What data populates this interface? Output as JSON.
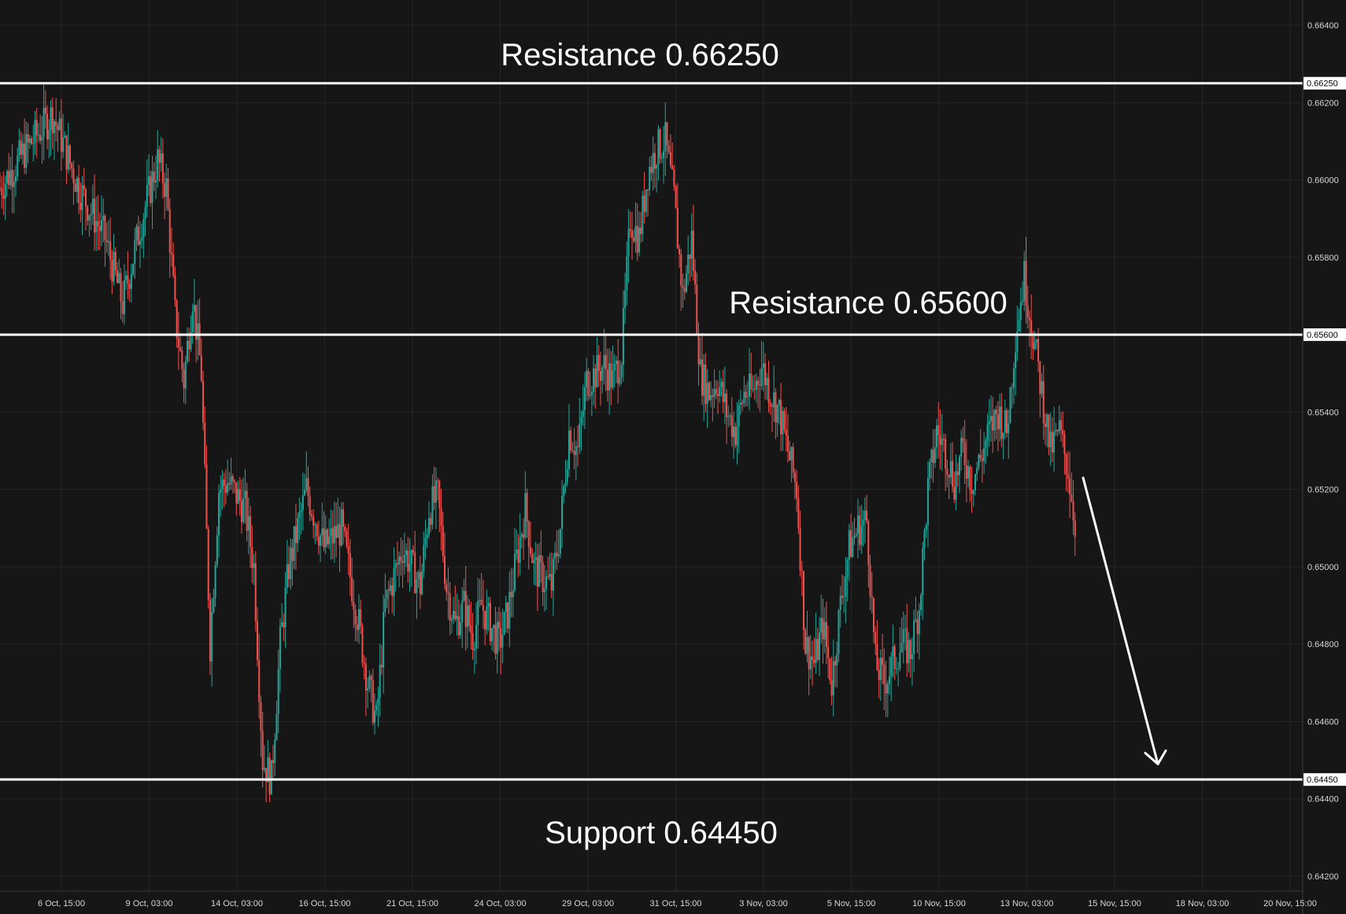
{
  "chart_data": {
    "type": "candlestick",
    "title": "",
    "xlabel": "",
    "ylabel": "",
    "ylim": [
      0.6417,
      0.6652
    ],
    "y_ticks": [
      "0.66400",
      "0.66200",
      "0.66000",
      "0.65800",
      "0.65600",
      "0.65400",
      "0.65200",
      "0.65000",
      "0.64800",
      "0.64600",
      "0.64400",
      "0.64200"
    ],
    "x_ticks": [
      "6 Oct, 15:00",
      "9 Oct, 03:00",
      "14 Oct, 03:00",
      "16 Oct, 15:00",
      "21 Oct, 15:00",
      "24 Oct, 03:00",
      "29 Oct, 03:00",
      "31 Oct, 15:00",
      "3 Nov, 03:00",
      "5 Nov, 15:00",
      "10 Nov, 15:00",
      "13 Nov, 03:00",
      "15 Nov, 15:00",
      "18 Nov, 03:00",
      "20 Nov, 15:00"
    ],
    "price_path": [
      {
        "t": 0,
        "p": 0.6598
      },
      {
        "t": 3,
        "p": 0.6608
      },
      {
        "t": 6,
        "p": 0.6617
      },
      {
        "t": 9,
        "p": 0.6598
      },
      {
        "t": 12,
        "p": 0.6585
      },
      {
        "t": 14,
        "p": 0.6568
      },
      {
        "t": 16,
        "p": 0.6588
      },
      {
        "t": 18,
        "p": 0.6605
      },
      {
        "t": 19,
        "p": 0.6598
      },
      {
        "t": 20,
        "p": 0.6565
      },
      {
        "t": 21,
        "p": 0.6548
      },
      {
        "t": 22,
        "p": 0.657
      },
      {
        "t": 23,
        "p": 0.655
      },
      {
        "t": 24,
        "p": 0.648
      },
      {
        "t": 25,
        "p": 0.652
      },
      {
        "t": 26,
        "p": 0.6522
      },
      {
        "t": 28,
        "p": 0.6515
      },
      {
        "t": 29,
        "p": 0.65
      },
      {
        "t": 30,
        "p": 0.645
      },
      {
        "t": 31,
        "p": 0.6445
      },
      {
        "t": 32,
        "p": 0.648
      },
      {
        "t": 33,
        "p": 0.65
      },
      {
        "t": 35,
        "p": 0.652
      },
      {
        "t": 37,
        "p": 0.6505
      },
      {
        "t": 39,
        "p": 0.651
      },
      {
        "t": 41,
        "p": 0.6485
      },
      {
        "t": 42,
        "p": 0.647
      },
      {
        "t": 43,
        "p": 0.646
      },
      {
        "t": 44,
        "p": 0.649
      },
      {
        "t": 46,
        "p": 0.6505
      },
      {
        "t": 48,
        "p": 0.6495
      },
      {
        "t": 49,
        "p": 0.6515
      },
      {
        "t": 50,
        "p": 0.6518
      },
      {
        "t": 51,
        "p": 0.6495
      },
      {
        "t": 52,
        "p": 0.6485
      },
      {
        "t": 53,
        "p": 0.649
      },
      {
        "t": 54,
        "p": 0.6482
      },
      {
        "t": 55,
        "p": 0.649
      },
      {
        "t": 56,
        "p": 0.6485
      },
      {
        "t": 57,
        "p": 0.648
      },
      {
        "t": 58,
        "p": 0.6488
      },
      {
        "t": 59,
        "p": 0.6502
      },
      {
        "t": 60,
        "p": 0.6515
      },
      {
        "t": 61,
        "p": 0.65
      },
      {
        "t": 62,
        "p": 0.6497
      },
      {
        "t": 63,
        "p": 0.6495
      },
      {
        "t": 64,
        "p": 0.651
      },
      {
        "t": 65,
        "p": 0.6535
      },
      {
        "t": 66,
        "p": 0.653
      },
      {
        "t": 67,
        "p": 0.6548
      },
      {
        "t": 68,
        "p": 0.655
      },
      {
        "t": 69,
        "p": 0.6552
      },
      {
        "t": 70,
        "p": 0.6548
      },
      {
        "t": 71,
        "p": 0.6555
      },
      {
        "t": 72,
        "p": 0.659
      },
      {
        "t": 73,
        "p": 0.6585
      },
      {
        "t": 74,
        "p": 0.6602
      },
      {
        "t": 75,
        "p": 0.6608
      },
      {
        "t": 76,
        "p": 0.661
      },
      {
        "t": 77,
        "p": 0.6595
      },
      {
        "t": 78,
        "p": 0.657
      },
      {
        "t": 79,
        "p": 0.6585
      },
      {
        "t": 80,
        "p": 0.655
      },
      {
        "t": 81,
        "p": 0.6545
      },
      {
        "t": 82,
        "p": 0.6548
      },
      {
        "t": 83,
        "p": 0.654
      },
      {
        "t": 84,
        "p": 0.6535
      },
      {
        "t": 85,
        "p": 0.6545
      },
      {
        "t": 86,
        "p": 0.6545
      },
      {
        "t": 87,
        "p": 0.6552
      },
      {
        "t": 88,
        "p": 0.6545
      },
      {
        "t": 89,
        "p": 0.654
      },
      {
        "t": 90,
        "p": 0.653
      },
      {
        "t": 91,
        "p": 0.652
      },
      {
        "t": 92,
        "p": 0.648
      },
      {
        "t": 93,
        "p": 0.6475
      },
      {
        "t": 94,
        "p": 0.6485
      },
      {
        "t": 95,
        "p": 0.647
      },
      {
        "t": 96,
        "p": 0.649
      },
      {
        "t": 97,
        "p": 0.6505
      },
      {
        "t": 98,
        "p": 0.651
      },
      {
        "t": 99,
        "p": 0.6512
      },
      {
        "t": 100,
        "p": 0.6475
      },
      {
        "t": 101,
        "p": 0.647
      },
      {
        "t": 102,
        "p": 0.6475
      },
      {
        "t": 103,
        "p": 0.648
      },
      {
        "t": 104,
        "p": 0.6478
      },
      {
        "t": 105,
        "p": 0.649
      },
      {
        "t": 106,
        "p": 0.652
      },
      {
        "t": 107,
        "p": 0.6535
      },
      {
        "t": 108,
        "p": 0.653
      },
      {
        "t": 109,
        "p": 0.6522
      },
      {
        "t": 110,
        "p": 0.653
      },
      {
        "t": 111,
        "p": 0.6522
      },
      {
        "t": 112,
        "p": 0.6528
      },
      {
        "t": 113,
        "p": 0.6535
      },
      {
        "t": 114,
        "p": 0.654
      },
      {
        "t": 115,
        "p": 0.6535
      },
      {
        "t": 116,
        "p": 0.656
      },
      {
        "t": 117,
        "p": 0.6575
      },
      {
        "t": 118,
        "p": 0.656
      },
      {
        "t": 119,
        "p": 0.6545
      },
      {
        "t": 120,
        "p": 0.653
      },
      {
        "t": 121,
        "p": 0.6535
      },
      {
        "t": 122,
        "p": 0.6525
      },
      {
        "t": 123,
        "p": 0.6508
      }
    ],
    "levels": [
      {
        "label": "Resistance 0.66250",
        "tag": "0.66250",
        "value": 0.6625
      },
      {
        "label": "Resistance 0.65600",
        "tag": "0.65600",
        "value": 0.656
      },
      {
        "label": "Support 0.64450",
        "tag": "0.64450",
        "value": 0.6445
      }
    ],
    "projection": {
      "from": 0.6523,
      "to": 0.6449
    },
    "colors": {
      "background": "#161616",
      "up": "#26a69a",
      "down": "#ef5350",
      "grid": "#262626",
      "level": "#ffffff",
      "text": "#d6d6d6"
    },
    "grid": true,
    "legend": "none"
  }
}
